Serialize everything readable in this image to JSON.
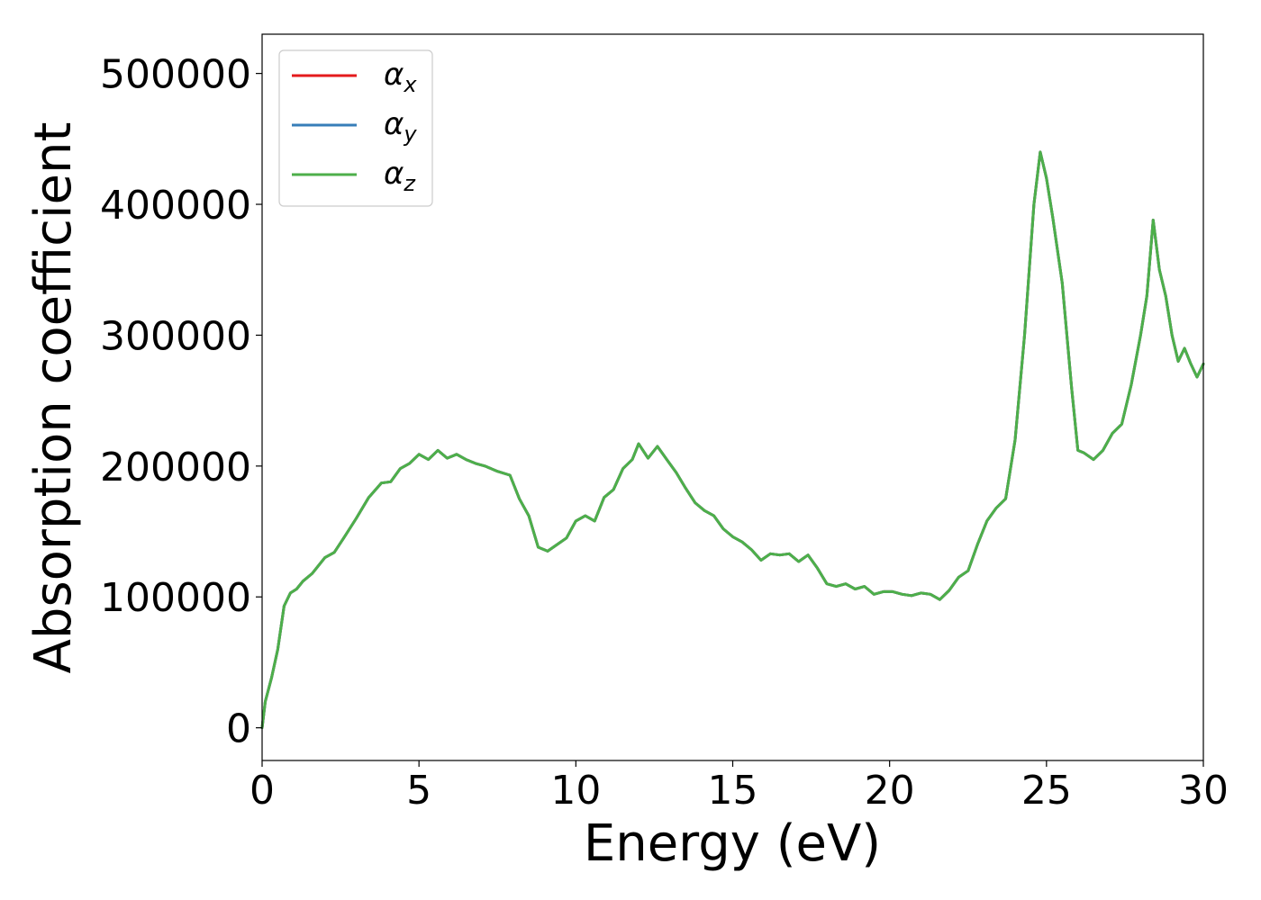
{
  "chart_data": {
    "type": "line",
    "xlabel": "Energy (eV)",
    "ylabel": "Absorption coefficient",
    "xlim": [
      0,
      30
    ],
    "ylim": [
      -25000,
      530000
    ],
    "xticks": [
      0,
      5,
      10,
      15,
      20,
      25,
      30
    ],
    "xtick_labels": [
      "0",
      "5",
      "10",
      "15",
      "20",
      "25",
      "30"
    ],
    "yticks": [
      0,
      100000,
      200000,
      300000,
      400000,
      500000
    ],
    "ytick_labels": [
      "0",
      "100000",
      "200000",
      "300000",
      "400000",
      "500000"
    ],
    "grid": false,
    "legend": "top-left",
    "colors": {
      "alpha_x": "#e41a1c",
      "alpha_y": "#377eb8",
      "alpha_z": "#4daf4a"
    },
    "x": [
      0.0,
      0.1,
      0.3,
      0.5,
      0.7,
      0.9,
      1.1,
      1.3,
      1.6,
      2.0,
      2.3,
      2.6,
      3.0,
      3.4,
      3.8,
      4.1,
      4.4,
      4.7,
      5.0,
      5.3,
      5.6,
      5.9,
      6.2,
      6.5,
      6.8,
      7.1,
      7.5,
      7.9,
      8.2,
      8.5,
      8.8,
      9.1,
      9.4,
      9.7,
      10.0,
      10.3,
      10.6,
      10.9,
      11.2,
      11.5,
      11.8,
      12.0,
      12.3,
      12.6,
      12.9,
      13.2,
      13.5,
      13.8,
      14.1,
      14.4,
      14.7,
      15.0,
      15.3,
      15.6,
      15.9,
      16.2,
      16.5,
      16.8,
      17.1,
      17.4,
      17.7,
      18.0,
      18.3,
      18.6,
      18.9,
      19.2,
      19.5,
      19.8,
      20.1,
      20.4,
      20.7,
      21.0,
      21.3,
      21.6,
      21.9,
      22.2,
      22.5,
      22.8,
      23.1,
      23.4,
      23.7,
      24.0,
      24.3,
      24.6,
      24.8,
      25.0,
      25.2,
      25.5,
      25.8,
      26.0,
      26.2,
      26.5,
      26.8,
      27.1,
      27.4,
      27.7,
      28.0,
      28.2,
      28.4,
      28.6,
      28.8,
      29.0,
      29.2,
      29.4,
      29.6,
      29.8,
      30.0
    ],
    "series": [
      {
        "name": "α_x",
        "color": "#e41a1c",
        "values": [
          0,
          20000,
          38000,
          60000,
          93000,
          103000,
          106000,
          112000,
          118000,
          130000,
          134000,
          145000,
          160000,
          176000,
          187000,
          188000,
          198000,
          202000,
          209000,
          205000,
          212000,
          206000,
          209000,
          205000,
          202000,
          200000,
          196000,
          193000,
          175000,
          162000,
          138000,
          135000,
          140000,
          145000,
          158000,
          162000,
          158000,
          176000,
          182000,
          198000,
          205000,
          217000,
          206000,
          215000,
          205000,
          195000,
          183000,
          172000,
          166000,
          162000,
          152000,
          146000,
          142000,
          136000,
          128000,
          133000,
          132000,
          133000,
          127000,
          132000,
          122000,
          110000,
          108000,
          110000,
          106000,
          108000,
          102000,
          104000,
          104000,
          102000,
          101000,
          103000,
          102000,
          98000,
          105000,
          115000,
          120000,
          140000,
          158000,
          168000,
          175000,
          220000,
          300000,
          400000,
          440000,
          420000,
          390000,
          340000,
          260000,
          212000,
          210000,
          205000,
          212000,
          225000,
          232000,
          262000,
          300000,
          330000,
          388000,
          350000,
          330000,
          300000,
          280000,
          290000,
          278000,
          268000,
          278000
        ]
      },
      {
        "name": "α_y",
        "color": "#377eb8",
        "values": [
          0,
          20000,
          38000,
          60000,
          93000,
          103000,
          106000,
          112000,
          118000,
          130000,
          134000,
          145000,
          160000,
          176000,
          187000,
          188000,
          198000,
          202000,
          209000,
          205000,
          212000,
          206000,
          209000,
          205000,
          202000,
          200000,
          196000,
          193000,
          175000,
          162000,
          138000,
          135000,
          140000,
          145000,
          158000,
          162000,
          158000,
          176000,
          182000,
          198000,
          205000,
          217000,
          206000,
          215000,
          205000,
          195000,
          183000,
          172000,
          166000,
          162000,
          152000,
          146000,
          142000,
          136000,
          128000,
          133000,
          132000,
          133000,
          127000,
          132000,
          122000,
          110000,
          108000,
          110000,
          106000,
          108000,
          102000,
          104000,
          104000,
          102000,
          101000,
          103000,
          102000,
          98000,
          105000,
          115000,
          120000,
          140000,
          158000,
          168000,
          175000,
          220000,
          300000,
          400000,
          440000,
          420000,
          390000,
          340000,
          260000,
          212000,
          210000,
          205000,
          212000,
          225000,
          232000,
          262000,
          300000,
          330000,
          388000,
          350000,
          330000,
          300000,
          280000,
          290000,
          278000,
          268000,
          278000
        ]
      },
      {
        "name": "α_z",
        "color": "#4daf4a",
        "values": [
          0,
          20000,
          38000,
          60000,
          93000,
          103000,
          106000,
          112000,
          118000,
          130000,
          134000,
          145000,
          160000,
          176000,
          187000,
          188000,
          198000,
          202000,
          209000,
          205000,
          212000,
          206000,
          209000,
          205000,
          202000,
          200000,
          196000,
          193000,
          175000,
          162000,
          138000,
          135000,
          140000,
          145000,
          158000,
          162000,
          158000,
          176000,
          182000,
          198000,
          205000,
          217000,
          206000,
          215000,
          205000,
          195000,
          183000,
          172000,
          166000,
          162000,
          152000,
          146000,
          142000,
          136000,
          128000,
          133000,
          132000,
          133000,
          127000,
          132000,
          122000,
          110000,
          108000,
          110000,
          106000,
          108000,
          102000,
          104000,
          104000,
          102000,
          101000,
          103000,
          102000,
          98000,
          105000,
          115000,
          120000,
          140000,
          158000,
          168000,
          175000,
          220000,
          300000,
          400000,
          440000,
          420000,
          390000,
          340000,
          260000,
          212000,
          210000,
          205000,
          212000,
          225000,
          232000,
          262000,
          300000,
          330000,
          388000,
          350000,
          330000,
          300000,
          280000,
          290000,
          278000,
          268000,
          278000
        ]
      }
    ],
    "legend_entries": [
      {
        "symbol": "α",
        "sub": "x",
        "color": "#e41a1c"
      },
      {
        "symbol": "α",
        "sub": "y",
        "color": "#377eb8"
      },
      {
        "symbol": "α",
        "sub": "z",
        "color": "#4daf4a"
      }
    ]
  }
}
